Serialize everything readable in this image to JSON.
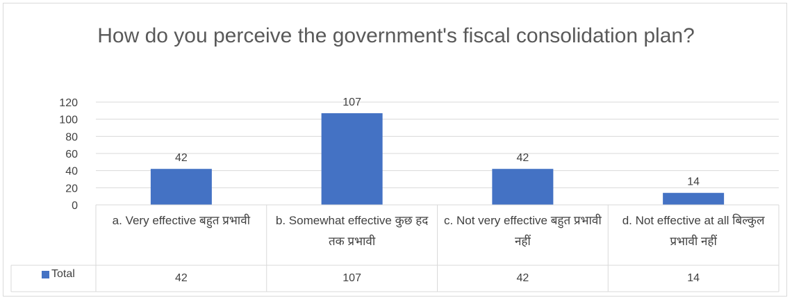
{
  "chart_data": {
    "type": "bar",
    "title": "How do you perceive the government's fiscal consolidation plan?",
    "categories": [
      "a. Very effective बहुत प्रभावी",
      "b. Somewhat effective कुछ हद तक प्रभावी",
      "c. Not very effective बहुत प्रभावी नहीं",
      "d. Not effective at all बिल्कुल प्रभावी नहीं"
    ],
    "series": [
      {
        "name": "Total",
        "values": [
          42,
          107,
          42,
          14
        ],
        "color": "#4472C4"
      }
    ],
    "ylim": [
      0,
      120
    ],
    "yticks": [
      0,
      20,
      40,
      60,
      80,
      100,
      120
    ],
    "grid": true,
    "data_labels": true,
    "data_table": true,
    "legend": "data-table"
  }
}
